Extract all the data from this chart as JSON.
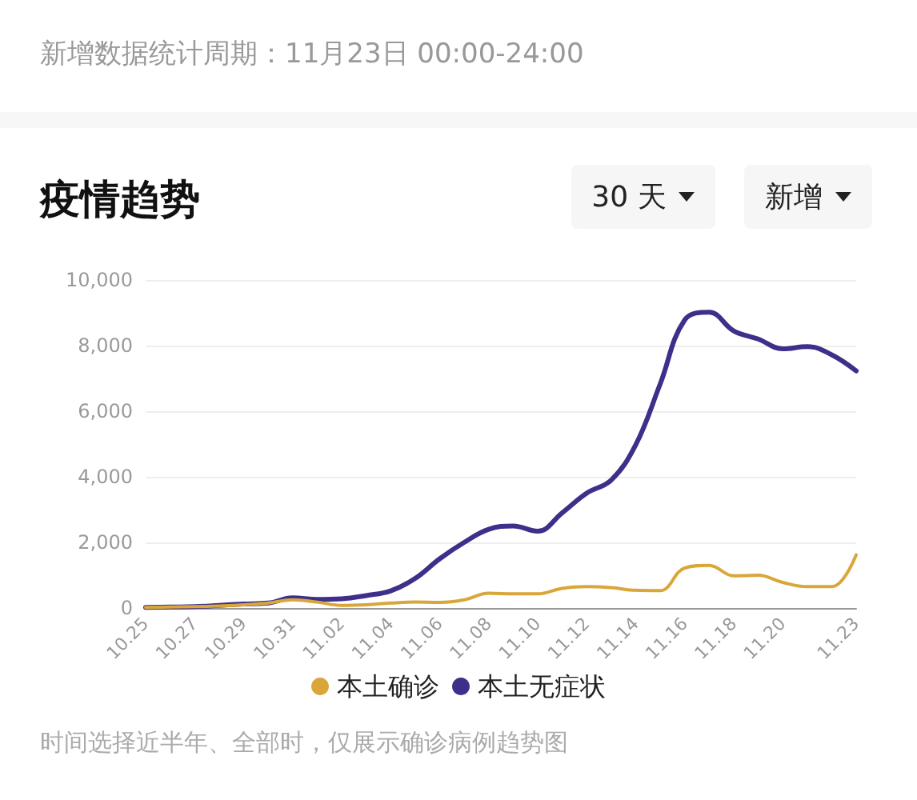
{
  "chart_data": {
    "type": "line",
    "title": "疫情趋势",
    "subtitle": "新增数据统计周期：11月23日 00:00-24:00",
    "annotations": [
      "30 天",
      "新增",
      "时间选择近半年、全部时，仅展示确诊病例趋势图"
    ],
    "categories": [
      "10.25",
      null,
      "10.27",
      null,
      "10.29",
      null,
      "10.31",
      null,
      "11.02",
      null,
      "11.04",
      null,
      "11.06",
      null,
      "11.08",
      null,
      "11.10",
      null,
      "11.12",
      null,
      "11.14",
      null,
      "11.16",
      null,
      "11.18",
      null,
      "11.20",
      null,
      null,
      "11.23"
    ],
    "series": [
      {
        "name": "本土确诊",
        "color": "#d9a63a",
        "values": [
          20,
          30,
          40,
          60,
          100,
          150,
          250,
          180,
          80,
          100,
          150,
          180,
          170,
          250,
          450,
          430,
          430,
          600,
          650,
          620,
          540,
          530,
          1220,
          1300,
          980,
          1000,
          780,
          650,
          650,
          1620
        ]
      },
      {
        "name": "本土无症状",
        "color": "#3d2f8a",
        "values": [
          20,
          30,
          40,
          80,
          120,
          150,
          310,
          260,
          280,
          380,
          520,
          900,
          1500,
          2000,
          2400,
          2500,
          2340,
          2900,
          3500,
          3900,
          4970,
          6830,
          8780,
          9020,
          8450,
          8200,
          7900,
          7970,
          7720,
          7230
        ]
      }
    ],
    "ylim": [
      0,
      10000
    ],
    "yticks": [
      0,
      {
        "value": 2000,
        "label": "2,000"
      },
      {
        "value": 4000,
        "label": "4,000"
      },
      {
        "value": 6000,
        "label": "6,000"
      },
      {
        "value": 8000,
        "label": "8,000"
      },
      {
        "value": 10000,
        "label": "10,000"
      }
    ],
    "grid": "y",
    "legend": "bottom",
    "marker": "none",
    "line_style": "solid"
  }
}
